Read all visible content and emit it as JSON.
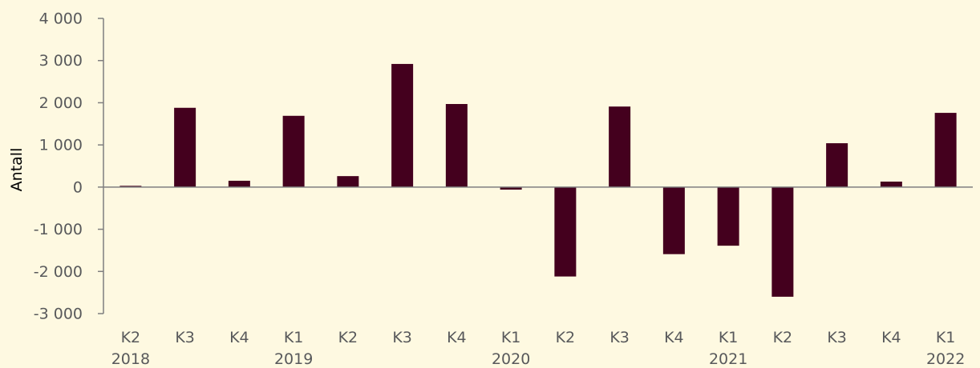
{
  "chart_data": {
    "type": "bar",
    "ylabel": "Antall",
    "xlabel": "",
    "title": "",
    "ylim": [
      -3000,
      4000
    ],
    "y_ticks": [
      4000,
      3000,
      2000,
      1000,
      0,
      -1000,
      -2000,
      -3000
    ],
    "y_tick_labels": [
      "4 000",
      "3 000",
      "2 000",
      "1 000",
      "0",
      "-1 000",
      "-2 000",
      "-3 000"
    ],
    "categories": [
      "K2",
      "K3",
      "K4",
      "K1",
      "K2",
      "K3",
      "K4",
      "K1",
      "K2",
      "K3",
      "K4",
      "K1",
      "K2",
      "K3",
      "K4",
      "K1"
    ],
    "year_labels": [
      "2018",
      "",
      "",
      "2019",
      "",
      "",
      "",
      "2020",
      "",
      "",
      "",
      "2021",
      "",
      "",
      "",
      "2022"
    ],
    "values": [
      30,
      1880,
      150,
      1690,
      260,
      2920,
      1970,
      -60,
      -2120,
      1910,
      -1590,
      -1390,
      -2600,
      1040,
      130,
      1760
    ],
    "bar_color": "#44001e",
    "axis_color": "#7f7f7f",
    "background": "#fef9e1",
    "grid": false,
    "legend": "none"
  }
}
